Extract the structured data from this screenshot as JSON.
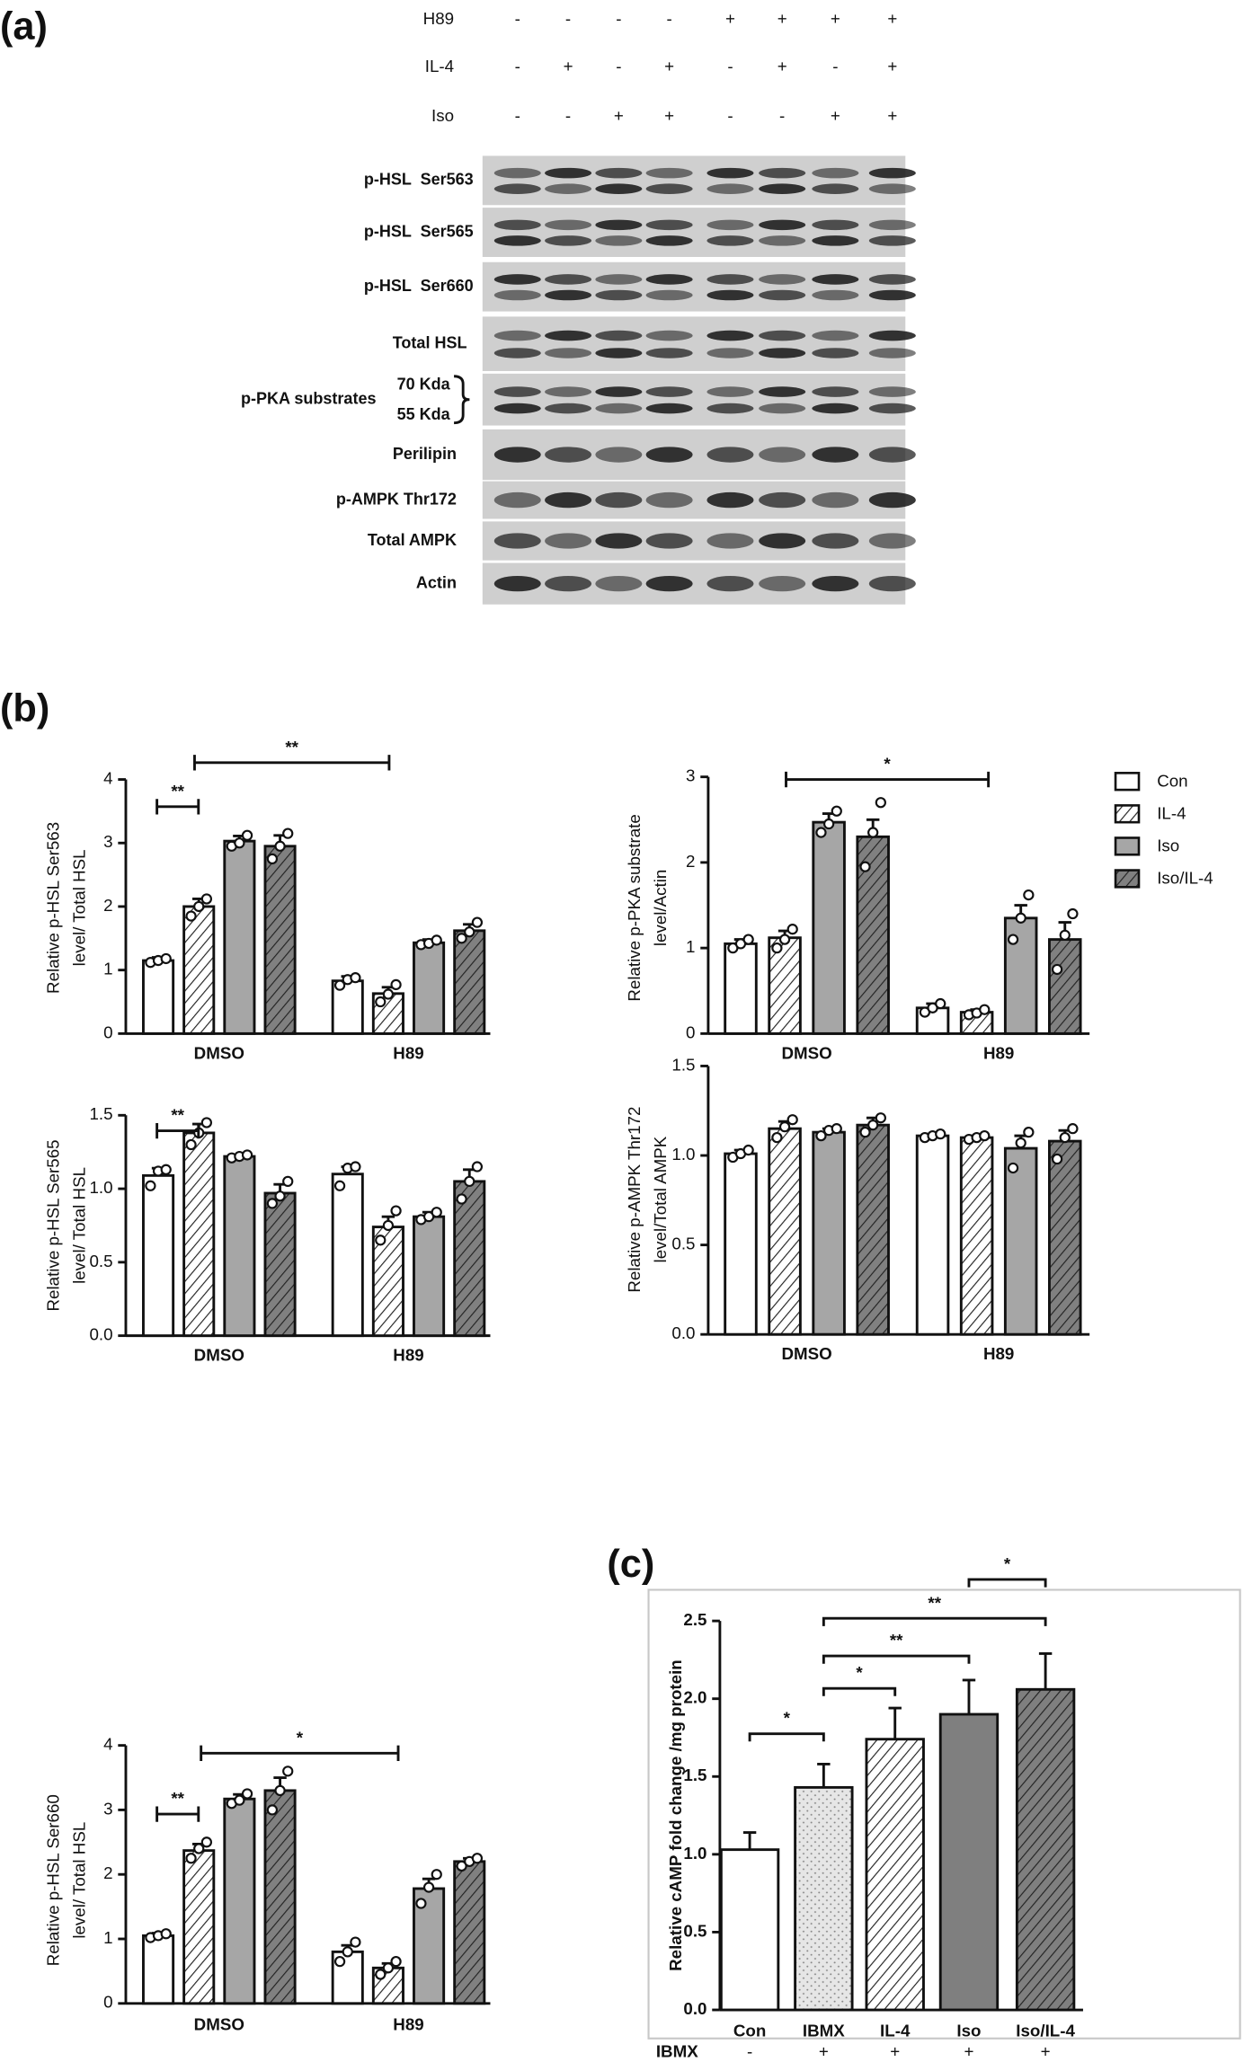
{
  "panel_labels": [
    "(a)",
    "(b)",
    "(c)"
  ],
  "blot": {
    "treatments": [
      {
        "name": "H89",
        "signs": [
          "-",
          "-",
          "-",
          "-",
          "+",
          "+",
          "+",
          "+"
        ]
      },
      {
        "name": "IL-4",
        "signs": [
          "-",
          "+",
          "-",
          "+",
          "-",
          "+",
          "-",
          "+"
        ]
      },
      {
        "name": "Iso",
        "signs": [
          "-",
          "-",
          "+",
          "+",
          "-",
          "-",
          "+",
          "+"
        ]
      }
    ],
    "rows": [
      "p-HSL  Ser563",
      "p-HSL  Ser565",
      "p-HSL  Ser660",
      "Total HSL",
      "p-PKA substrates",
      "Perilipin",
      "p-AMPK Thr172",
      "Total AMPK",
      "Actin"
    ],
    "markers": [
      "70 Kda",
      "55 Kda"
    ]
  },
  "chart_data": [
    {
      "type": "bar",
      "y_label": [
        "Relative p-HSL Ser563",
        "level/ Total HSL"
      ],
      "categories": [
        "DMSO",
        "H89"
      ],
      "ylim": [
        0,
        4
      ],
      "yticks": [
        0,
        1,
        2,
        3,
        4
      ],
      "annotations": [
        "**",
        "**"
      ],
      "series": [
        {
          "color": "#ffffff",
          "pattern": "none",
          "values": [
            1.15,
            0.83
          ],
          "errors": [
            0.05,
            0.07
          ],
          "points": [
            [
              1.12,
              1.15,
              1.18
            ],
            [
              0.76,
              0.85,
              0.88
            ]
          ]
        },
        {
          "color": "#ffffff",
          "pattern": "hatch",
          "values": [
            2.0,
            0.63
          ],
          "errors": [
            0.12,
            0.1
          ],
          "points": [
            [
              1.85,
              2.0,
              2.12
            ],
            [
              0.5,
              0.62,
              0.77
            ]
          ]
        },
        {
          "color": "#a6a6a6",
          "pattern": "none",
          "values": [
            3.03,
            1.43
          ],
          "errors": [
            0.08,
            0.05
          ],
          "points": [
            [
              2.95,
              3.0,
              3.12
            ],
            [
              1.4,
              1.42,
              1.47
            ]
          ]
        },
        {
          "color": "#808080",
          "pattern": "hatch",
          "values": [
            2.95,
            1.62
          ],
          "errors": [
            0.17,
            0.1
          ],
          "points": [
            [
              2.75,
              2.95,
              3.15
            ],
            [
              1.5,
              1.6,
              1.75
            ]
          ]
        }
      ]
    },
    {
      "type": "bar",
      "y_label": [
        "Relative p-PKA substrate",
        "level/Actin"
      ],
      "categories": [
        "DMSO",
        "H89"
      ],
      "ylim": [
        0,
        3
      ],
      "yticks": [
        0,
        1,
        2,
        3
      ],
      "annotations": [
        "*"
      ],
      "legend": "outside-right",
      "series": [
        {
          "name": "Con",
          "color": "#ffffff",
          "pattern": "none",
          "values": [
            1.05,
            0.3
          ],
          "errors": [
            0.05,
            0.05
          ],
          "points": [
            [
              1.0,
              1.05,
              1.1
            ],
            [
              0.25,
              0.3,
              0.35
            ]
          ]
        },
        {
          "name": "IL-4",
          "color": "#ffffff",
          "pattern": "hatch",
          "values": [
            1.12,
            0.25
          ],
          "errors": [
            0.08,
            0.03
          ],
          "points": [
            [
              1.0,
              1.1,
              1.22
            ],
            [
              0.22,
              0.24,
              0.28
            ]
          ]
        },
        {
          "name": "Iso",
          "color": "#a6a6a6",
          "pattern": "none",
          "values": [
            2.47,
            1.35
          ],
          "errors": [
            0.1,
            0.15
          ],
          "points": [
            [
              2.35,
              2.45,
              2.6
            ],
            [
              1.1,
              1.35,
              1.62
            ]
          ]
        },
        {
          "name": "Iso/IL-4",
          "color": "#808080",
          "pattern": "hatch",
          "values": [
            2.3,
            1.1
          ],
          "errors": [
            0.2,
            0.2
          ],
          "points": [
            [
              1.95,
              2.35,
              2.7
            ],
            [
              0.75,
              1.15,
              1.4
            ]
          ]
        }
      ]
    },
    {
      "type": "bar",
      "y_label": [
        "Relative p-HSL Ser565",
        "level/ Total HSL"
      ],
      "categories": [
        "DMSO",
        "H89"
      ],
      "ylim": [
        0,
        1.5
      ],
      "yticks": [
        {
          "value": 0,
          "label": "0.0"
        },
        0.5,
        {
          "value": 1,
          "label": "1.0"
        },
        1.5
      ],
      "annotations": [
        "**"
      ],
      "series": [
        {
          "color": "#ffffff",
          "pattern": "none",
          "values": [
            1.09,
            1.1
          ],
          "errors": [
            0.05,
            0.05
          ],
          "points": [
            [
              1.02,
              1.12,
              1.13
            ],
            [
              1.02,
              1.14,
              1.15
            ]
          ]
        },
        {
          "color": "#ffffff",
          "pattern": "hatch",
          "values": [
            1.38,
            0.74
          ],
          "errors": [
            0.06,
            0.07
          ],
          "points": [
            [
              1.3,
              1.38,
              1.45
            ],
            [
              0.65,
              0.75,
              0.85
            ]
          ]
        },
        {
          "color": "#a6a6a6",
          "pattern": "none",
          "values": [
            1.22,
            0.81
          ],
          "errors": [
            0.01,
            0.03
          ],
          "points": [
            [
              1.21,
              1.22,
              1.23
            ],
            [
              0.79,
              0.81,
              0.84
            ]
          ]
        },
        {
          "color": "#808080",
          "pattern": "hatch",
          "values": [
            0.97,
            1.05
          ],
          "errors": [
            0.06,
            0.08
          ],
          "points": [
            [
              0.9,
              0.95,
              1.05
            ],
            [
              0.93,
              1.05,
              1.15
            ]
          ]
        }
      ]
    },
    {
      "type": "bar",
      "y_label": [
        "Relative p-AMPK Thr172",
        "level/Total AMPK"
      ],
      "categories": [
        "DMSO",
        "H89"
      ],
      "ylim": [
        0,
        1.5
      ],
      "yticks": [
        {
          "value": 0,
          "label": "0.0"
        },
        0.5,
        {
          "value": 1,
          "label": "1.0"
        },
        1.5
      ],
      "annotations": [],
      "series": [
        {
          "color": "#ffffff",
          "pattern": "none",
          "values": [
            1.01,
            1.11
          ],
          "errors": [
            0.02,
            0.01
          ],
          "points": [
            [
              0.99,
              1.01,
              1.03
            ],
            [
              1.1,
              1.11,
              1.12
            ]
          ]
        },
        {
          "color": "#ffffff",
          "pattern": "hatch",
          "values": [
            1.15,
            1.1
          ],
          "errors": [
            0.04,
            0.01
          ],
          "points": [
            [
              1.1,
              1.16,
              1.2
            ],
            [
              1.09,
              1.1,
              1.11
            ]
          ]
        },
        {
          "color": "#a6a6a6",
          "pattern": "none",
          "values": [
            1.13,
            1.04
          ],
          "errors": [
            0.02,
            0.07
          ],
          "points": [
            [
              1.11,
              1.14,
              1.15
            ],
            [
              0.93,
              1.07,
              1.13
            ]
          ]
        },
        {
          "color": "#808080",
          "pattern": "hatch",
          "values": [
            1.17,
            1.08
          ],
          "errors": [
            0.04,
            0.06
          ],
          "points": [
            [
              1.13,
              1.17,
              1.21
            ],
            [
              0.98,
              1.1,
              1.15
            ]
          ]
        }
      ]
    },
    {
      "type": "bar",
      "y_label": [
        "Relative p-HSL Ser660",
        "level/ Total HSL"
      ],
      "categories": [
        "DMSO",
        "H89"
      ],
      "ylim": [
        0,
        4
      ],
      "yticks": [
        0,
        1,
        2,
        3,
        4
      ],
      "annotations": [
        "**",
        "*"
      ],
      "series": [
        {
          "color": "#ffffff",
          "pattern": "none",
          "values": [
            1.05,
            0.8
          ],
          "errors": [
            0.04,
            0.1
          ],
          "points": [
            [
              1.02,
              1.05,
              1.08
            ],
            [
              0.65,
              0.8,
              0.95
            ]
          ]
        },
        {
          "color": "#ffffff",
          "pattern": "hatch",
          "values": [
            2.37,
            0.55
          ],
          "errors": [
            0.1,
            0.07
          ],
          "points": [
            [
              2.25,
              2.4,
              2.5
            ],
            [
              0.45,
              0.55,
              0.65
            ]
          ]
        },
        {
          "color": "#a6a6a6",
          "pattern": "none",
          "values": [
            3.17,
            1.78
          ],
          "errors": [
            0.07,
            0.15
          ],
          "points": [
            [
              3.1,
              3.15,
              3.25
            ],
            [
              1.55,
              1.8,
              2.0
            ]
          ]
        },
        {
          "color": "#808080",
          "pattern": "hatch",
          "values": [
            3.3,
            2.2
          ],
          "errors": [
            0.2,
            0.05
          ],
          "points": [
            [
              3.0,
              3.3,
              3.6
            ],
            [
              2.13,
              2.2,
              2.25
            ]
          ]
        }
      ]
    },
    {
      "type": "bar",
      "y_label": [
        "Relative cAMP fold change /mg protein"
      ],
      "categories": [
        "Con",
        "IBMX",
        "IL-4",
        "Iso",
        "Iso/IL-4"
      ],
      "values": [
        1.03,
        1.43,
        1.74,
        1.9,
        2.06
      ],
      "errors": [
        0.11,
        0.15,
        0.2,
        0.22,
        0.23
      ],
      "colors": [
        "#ffffff",
        "#e6e6e6",
        "#ffffff",
        "#7f7f7f",
        "#7f7f7f"
      ],
      "patterns": [
        "none",
        "dots",
        "hatch",
        "none",
        "hatch"
      ],
      "ylim": [
        0,
        2.5
      ],
      "yticks": [
        {
          "value": 0,
          "label": "0.0"
        },
        0.5,
        {
          "value": 1,
          "label": "1.0"
        },
        1.5,
        {
          "value": 2,
          "label": "2.0"
        },
        2.5
      ],
      "annotations": [
        "*",
        "*",
        "**",
        "**",
        "*"
      ],
      "row_label": "IBMX",
      "row_signs": [
        "-",
        "+",
        "+",
        "+",
        "+"
      ]
    }
  ]
}
